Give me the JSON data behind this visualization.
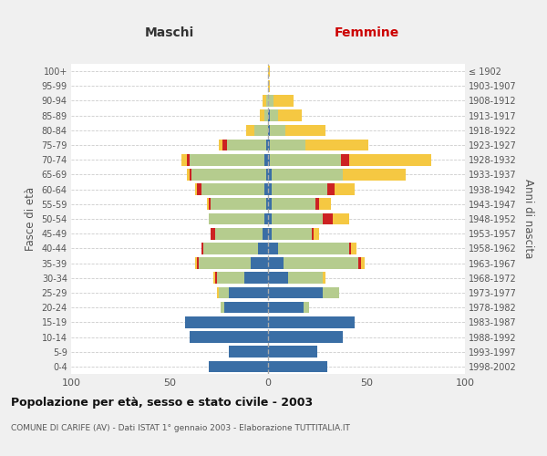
{
  "age_groups": [
    "0-4",
    "5-9",
    "10-14",
    "15-19",
    "20-24",
    "25-29",
    "30-34",
    "35-39",
    "40-44",
    "45-49",
    "50-54",
    "55-59",
    "60-64",
    "65-69",
    "70-74",
    "75-79",
    "80-84",
    "85-89",
    "90-94",
    "95-99",
    "100+"
  ],
  "birth_years": [
    "1998-2002",
    "1993-1997",
    "1988-1992",
    "1983-1987",
    "1978-1982",
    "1973-1977",
    "1968-1972",
    "1963-1967",
    "1958-1962",
    "1953-1957",
    "1948-1952",
    "1943-1947",
    "1938-1942",
    "1933-1937",
    "1928-1932",
    "1923-1927",
    "1918-1922",
    "1913-1917",
    "1908-1912",
    "1903-1907",
    "≤ 1902"
  ],
  "colors": {
    "celibi": "#3a6ea5",
    "coniugati": "#b5cc8e",
    "vedovi": "#f5c842",
    "divorziati": "#cc2222"
  },
  "male": {
    "celibi": [
      30,
      20,
      40,
      42,
      22,
      20,
      12,
      9,
      5,
      3,
      2,
      1,
      2,
      1,
      2,
      1,
      0,
      0,
      0,
      0,
      0
    ],
    "coniugati": [
      0,
      0,
      0,
      0,
      2,
      5,
      14,
      26,
      28,
      24,
      28,
      28,
      32,
      38,
      38,
      20,
      7,
      2,
      1,
      0,
      0
    ],
    "vedovi": [
      0,
      0,
      0,
      0,
      0,
      1,
      1,
      1,
      0,
      0,
      0,
      1,
      1,
      1,
      3,
      2,
      4,
      2,
      2,
      0,
      0
    ],
    "divorziati": [
      0,
      0,
      0,
      0,
      0,
      0,
      1,
      1,
      1,
      2,
      0,
      1,
      2,
      1,
      1,
      2,
      0,
      0,
      0,
      0,
      0
    ]
  },
  "female": {
    "celibi": [
      30,
      25,
      38,
      44,
      18,
      28,
      10,
      8,
      5,
      2,
      2,
      2,
      2,
      2,
      1,
      1,
      1,
      1,
      0,
      0,
      0
    ],
    "coniugati": [
      0,
      0,
      0,
      0,
      3,
      8,
      18,
      38,
      36,
      20,
      26,
      22,
      28,
      36,
      36,
      18,
      8,
      4,
      3,
      0,
      0
    ],
    "vedovi": [
      0,
      0,
      0,
      0,
      0,
      0,
      1,
      2,
      3,
      3,
      8,
      6,
      10,
      32,
      42,
      32,
      20,
      12,
      10,
      1,
      1
    ],
    "divorziati": [
      0,
      0,
      0,
      0,
      0,
      0,
      0,
      1,
      1,
      1,
      5,
      2,
      4,
      0,
      4,
      0,
      0,
      0,
      0,
      0,
      0
    ]
  },
  "xlim": 100,
  "title": "Popolazione per età, sesso e stato civile - 2003",
  "subtitle": "COMUNE DI CARIFE (AV) - Dati ISTAT 1° gennaio 2003 - Elaborazione TUTTITALIA.IT",
  "xlabel_left": "Maschi",
  "xlabel_right": "Femmine",
  "ylabel_left": "Fasce di età",
  "ylabel_right": "Anni di nascita",
  "bg_color": "#f0f0f0",
  "plot_bg_color": "#ffffff",
  "grid_color": "#cccccc"
}
